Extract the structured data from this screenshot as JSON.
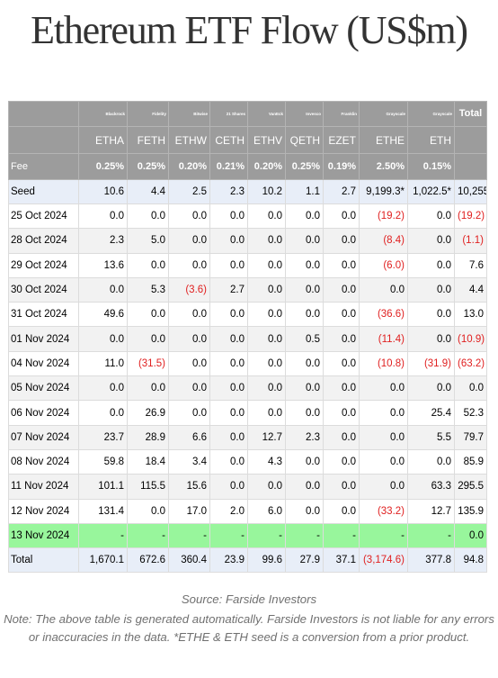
{
  "title": "Ethereum ETF Flow (US$m)",
  "providers": [
    "Blackrock",
    "Fidelity",
    "Bitwise",
    "21 Shares",
    "VanEck",
    "Invesco",
    "Franklin",
    "Grayscale",
    "Grayscale"
  ],
  "total_label": "Total",
  "tickers": [
    "ETHA",
    "FETH",
    "ETHW",
    "CETH",
    "ETHV",
    "QETH",
    "EZET",
    "ETHE",
    "ETH"
  ],
  "fee": {
    "label": "Fee",
    "values": [
      "0.25%",
      "0.25%",
      "0.20%",
      "0.21%",
      "0.20%",
      "0.25%",
      "0.19%",
      "2.50%",
      "0.15%"
    ]
  },
  "seed": {
    "label": "Seed",
    "values": [
      "10.6",
      "4.4",
      "2.5",
      "2.3",
      "10.2",
      "1.1",
      "2.7",
      "9,199.3*",
      "1,022.5*",
      "10,255"
    ]
  },
  "rows": [
    {
      "date": "25 Oct 2024",
      "values": [
        "0.0",
        "0.0",
        "0.0",
        "0.0",
        "0.0",
        "0.0",
        "0.0",
        "(19.2)",
        "0.0",
        "(19.2)"
      ]
    },
    {
      "date": "28 Oct 2024",
      "values": [
        "2.3",
        "5.0",
        "0.0",
        "0.0",
        "0.0",
        "0.0",
        "0.0",
        "(8.4)",
        "0.0",
        "(1.1)"
      ]
    },
    {
      "date": "29 Oct 2024",
      "values": [
        "13.6",
        "0.0",
        "0.0",
        "0.0",
        "0.0",
        "0.0",
        "0.0",
        "(6.0)",
        "0.0",
        "7.6"
      ]
    },
    {
      "date": "30 Oct 2024",
      "values": [
        "0.0",
        "5.3",
        "(3.6)",
        "2.7",
        "0.0",
        "0.0",
        "0.0",
        "0.0",
        "0.0",
        "4.4"
      ]
    },
    {
      "date": "31 Oct 2024",
      "values": [
        "49.6",
        "0.0",
        "0.0",
        "0.0",
        "0.0",
        "0.0",
        "0.0",
        "(36.6)",
        "0.0",
        "13.0"
      ]
    },
    {
      "date": "01 Nov 2024",
      "values": [
        "0.0",
        "0.0",
        "0.0",
        "0.0",
        "0.0",
        "0.5",
        "0.0",
        "(11.4)",
        "0.0",
        "(10.9)"
      ]
    },
    {
      "date": "04 Nov 2024",
      "values": [
        "11.0",
        "(31.5)",
        "0.0",
        "0.0",
        "0.0",
        "0.0",
        "0.0",
        "(10.8)",
        "(31.9)",
        "(63.2)"
      ]
    },
    {
      "date": "05 Nov 2024",
      "values": [
        "0.0",
        "0.0",
        "0.0",
        "0.0",
        "0.0",
        "0.0",
        "0.0",
        "0.0",
        "0.0",
        "0.0"
      ]
    },
    {
      "date": "06 Nov 2024",
      "values": [
        "0.0",
        "26.9",
        "0.0",
        "0.0",
        "0.0",
        "0.0",
        "0.0",
        "0.0",
        "25.4",
        "52.3"
      ]
    },
    {
      "date": "07 Nov 2024",
      "values": [
        "23.7",
        "28.9",
        "6.6",
        "0.0",
        "12.7",
        "2.3",
        "0.0",
        "0.0",
        "5.5",
        "79.7"
      ]
    },
    {
      "date": "08 Nov 2024",
      "values": [
        "59.8",
        "18.4",
        "3.4",
        "0.0",
        "4.3",
        "0.0",
        "0.0",
        "0.0",
        "0.0",
        "85.9"
      ]
    },
    {
      "date": "11 Nov 2024",
      "values": [
        "101.1",
        "115.5",
        "15.6",
        "0.0",
        "0.0",
        "0.0",
        "0.0",
        "0.0",
        "63.3",
        "295.5"
      ]
    },
    {
      "date": "12 Nov 2024",
      "values": [
        "131.4",
        "0.0",
        "17.0",
        "2.0",
        "6.0",
        "0.0",
        "0.0",
        "(33.2)",
        "12.7",
        "135.9"
      ]
    },
    {
      "date": "13 Nov 2024",
      "values": [
        "-",
        "-",
        "-",
        "-",
        "-",
        "-",
        "-",
        "-",
        "-",
        "0.0"
      ],
      "highlight": true
    }
  ],
  "total": {
    "label": "Total",
    "values": [
      "1,670.1",
      "672.6",
      "360.4",
      "23.9",
      "99.6",
      "27.9",
      "37.1",
      "(3,174.6)",
      "377.8",
      "94.8"
    ]
  },
  "source": "Source: Farside Investors",
  "note": "Note: The above table is generated automatically. Farside Investors is not liable for any errors or inaccuracies in the data. *ETHE & ETH seed is a conversion from a prior product.",
  "colors": {
    "header_bg": "#9c9c9c",
    "negative": "#e02020",
    "highlight": "#98f69c",
    "seed_total_bg": "#e8eef8"
  }
}
